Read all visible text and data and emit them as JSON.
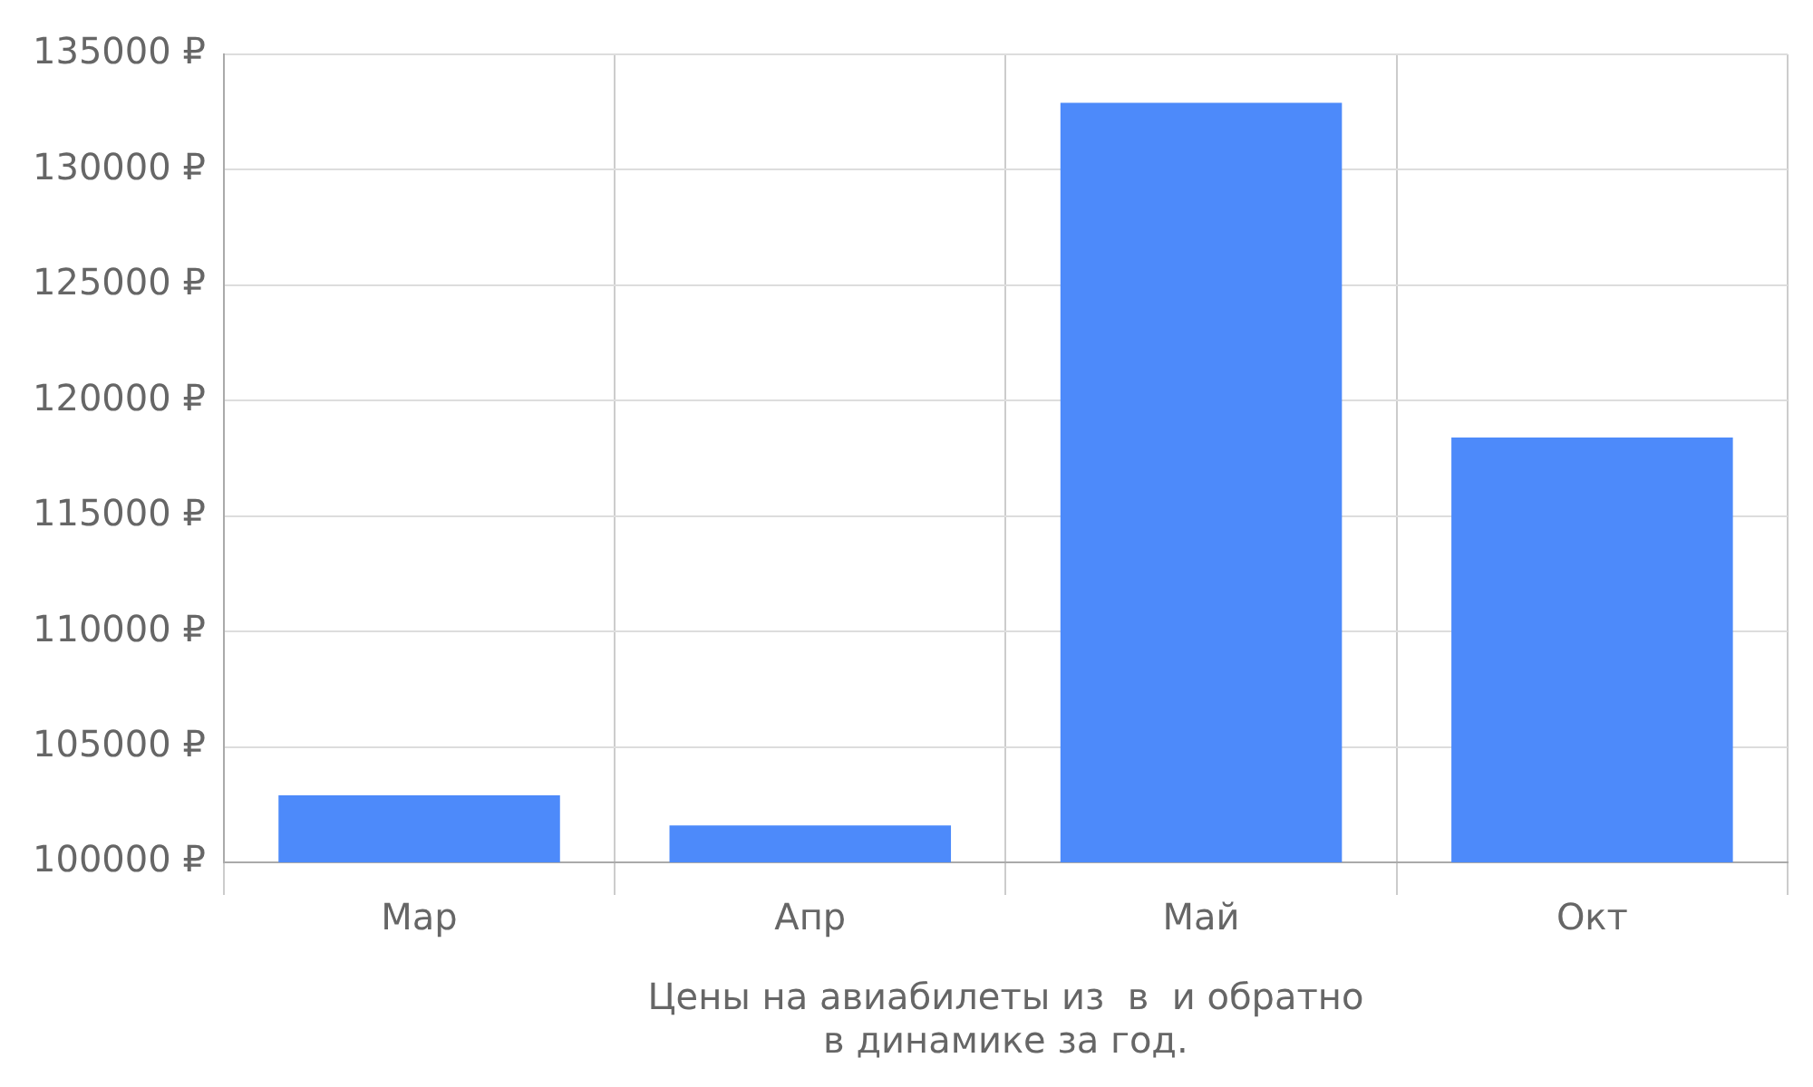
{
  "chart_data": {
    "type": "bar",
    "xlabel": "Цены на авиабилеты из  в  и обратно\nв динамике за год.",
    "categories": [
      "Мар",
      "Апр",
      "Май",
      "Окт"
    ],
    "values": [
      102900,
      101600,
      132900,
      118400
    ],
    "color": "#4d8afa",
    "ylim": [
      100000,
      135000
    ],
    "yticks": [
      {
        "value": 100000,
        "label": "100000 ₽"
      },
      {
        "value": 105000,
        "label": "105000 ₽"
      },
      {
        "value": 110000,
        "label": "110000 ₽"
      },
      {
        "value": 115000,
        "label": "115000 ₽"
      },
      {
        "value": 120000,
        "label": "120000 ₽"
      },
      {
        "value": 125000,
        "label": "125000 ₽"
      },
      {
        "value": 130000,
        "label": "130000 ₽"
      },
      {
        "value": 135000,
        "label": "135000 ₽"
      }
    ],
    "grid": true
  }
}
